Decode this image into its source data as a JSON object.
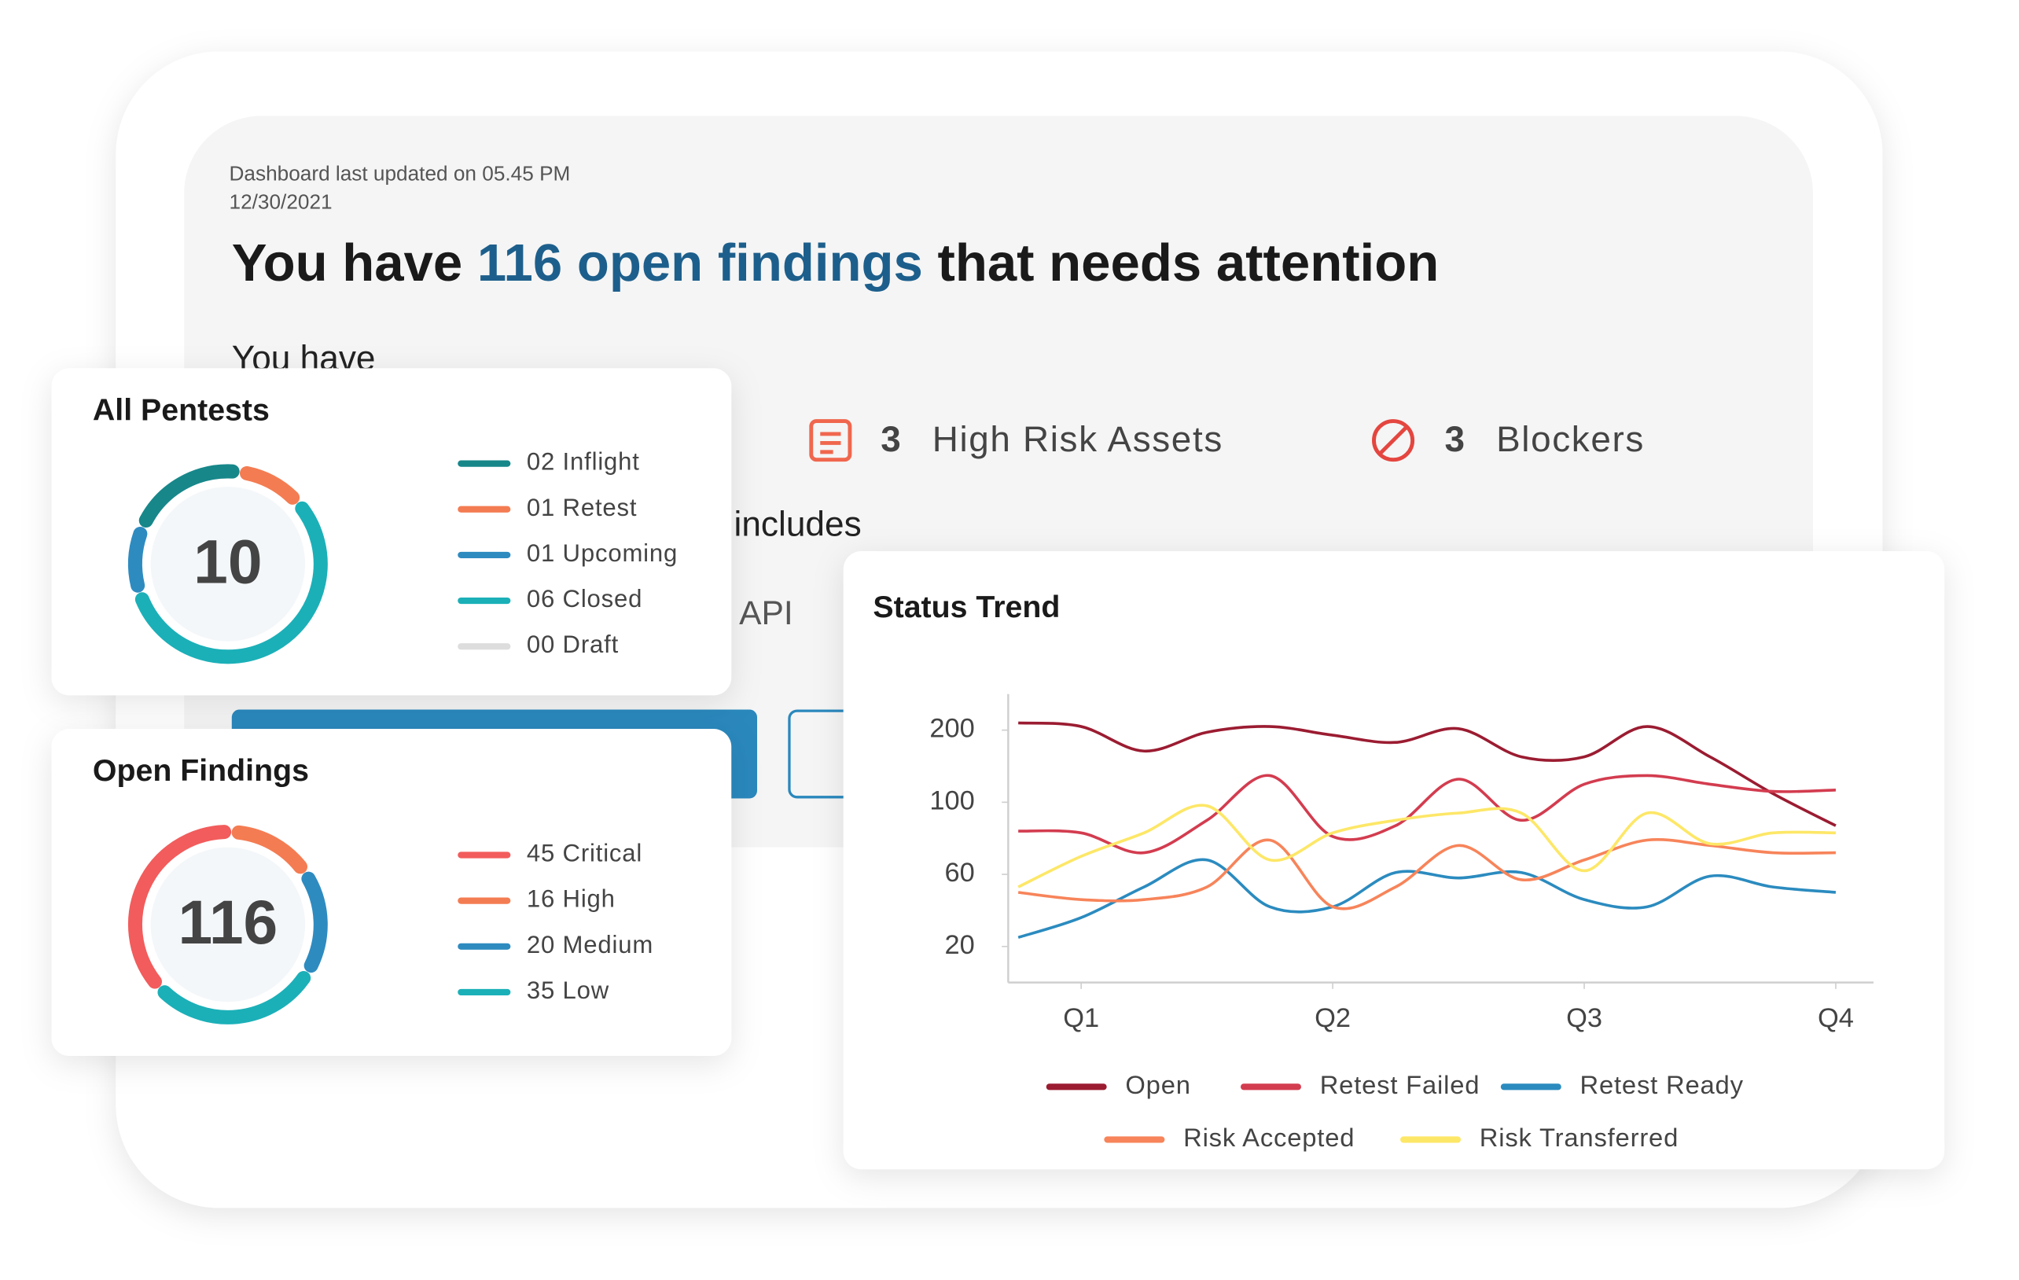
{
  "header": {
    "updated_line1": "Dashboard last updated on 05.45 PM",
    "updated_line2": "12/30/2021",
    "headline": {
      "before": "You have",
      "highlight": "116 open findings",
      "after": "that needs attention"
    },
    "you_have": "You have",
    "includes": "includes",
    "api": "API"
  },
  "stats": [
    {
      "value": 3,
      "label": "High Risk Assets"
    },
    {
      "value": 3,
      "label": "Blockers"
    }
  ],
  "all_pentests": {
    "title": "All Pentests",
    "total": 10,
    "items": [
      {
        "label": "Inflight",
        "value": 2,
        "value_label": "02",
        "color": "#17878a"
      },
      {
        "label": "Retest",
        "value": 1,
        "value_label": "01",
        "color": "#f47c52"
      },
      {
        "label": "Upcoming",
        "value": 1,
        "value_label": "01",
        "color": "#2e8bc0"
      },
      {
        "label": "Closed",
        "value": 6,
        "value_label": "06",
        "color": "#1bb0b8"
      },
      {
        "label": "Draft",
        "value": 0,
        "value_label": "00",
        "color": "#dddddd"
      }
    ]
  },
  "open_findings": {
    "title": "Open Findings",
    "total": 116,
    "items": [
      {
        "label": "Critical",
        "value": 45,
        "color": "#f25c5c"
      },
      {
        "label": "High",
        "value": 16,
        "color": "#f47c52"
      },
      {
        "label": "Medium",
        "value": 20,
        "color": "#2e8bc0"
      },
      {
        "label": "Low",
        "value": 35,
        "color": "#1bb0b8"
      }
    ]
  },
  "status_trend": {
    "type": "line",
    "title": "Status Trend",
    "x": [
      0.75,
      1.0,
      1.25,
      1.5,
      1.75,
      2.0,
      2.25,
      2.5,
      2.75,
      3.0,
      3.25,
      3.5,
      3.75,
      4.0
    ],
    "xlim": [
      0.71,
      4.15
    ],
    "xticks": [
      {
        "value": 1,
        "label": "Q1"
      },
      {
        "value": 2,
        "label": "Q2"
      },
      {
        "value": 3,
        "label": "Q3"
      },
      {
        "value": 4,
        "label": "Q4"
      }
    ],
    "ylim": [
      0,
      250
    ],
    "yticks": [
      20,
      60,
      100,
      200
    ],
    "series": [
      {
        "name": "Open",
        "color": "#9b1c31",
        "values": [
          210,
          205,
          171,
          197,
          205,
          193,
          183,
          202,
          163,
          163,
          205,
          163,
          112,
          87
        ]
      },
      {
        "name": "Retest Failed",
        "color": "#d33c4f",
        "values": [
          84,
          83,
          72,
          90,
          137,
          81,
          87,
          132,
          90,
          125,
          137,
          125,
          115,
          117
        ]
      },
      {
        "name": "Retest Ready",
        "color": "#2b8bbf",
        "values": [
          25,
          36,
          53,
          68,
          42,
          42,
          61,
          58,
          61,
          46,
          42,
          59,
          53,
          50
        ]
      },
      {
        "name": "Risk Accepted",
        "color": "#f7845a",
        "values": [
          50,
          46,
          46,
          53,
          79,
          42,
          53,
          76,
          57,
          68,
          79,
          76,
          72,
          72
        ]
      },
      {
        "name": "Risk Transferred",
        "color": "#fde767",
        "values": [
          53,
          70,
          83,
          98,
          68,
          83,
          90,
          94,
          94,
          62,
          94,
          77,
          83,
          83
        ]
      }
    ]
  }
}
